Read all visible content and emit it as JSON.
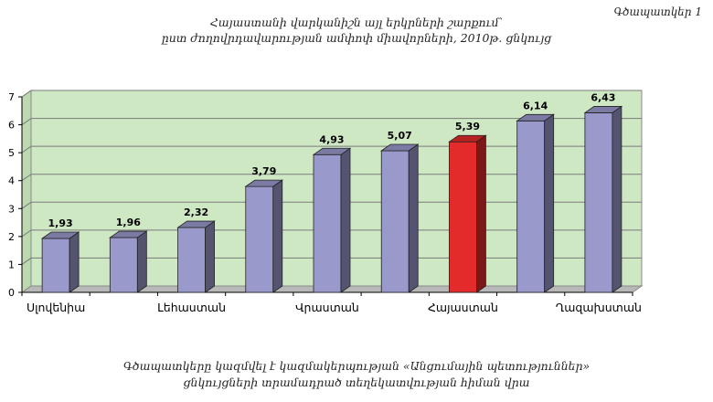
{
  "figure_label": "Գծապատկեր 1",
  "title_line1": "Հայաստանի վարկանիշն այլ երկրների շարքում՝",
  "title_line2": "ըստ ժողովրդավարության ամփոփ միավորների, 2010թ. ցնկույց",
  "caption_line1": "Գծապատկերը կազմվել է կազմակերպության «Անցումային պետություններ»",
  "caption_line2": "ցնկույցների տրամադրած տեղեկատվության հիման վրա",
  "colors": {
    "bar_default": "#9999cc",
    "bar_highlight": "#e32b2b",
    "plot_background": "#cfe8c4"
  },
  "chart_data": {
    "type": "bar",
    "title": "Հայաստանի վարկանիշն այլ երկրների շարքում՝ ըստ ժողովրդավարության ամփոփ միավորների, 2010թ. ցնկույց",
    "xlabel": "",
    "ylabel": "",
    "ylim": [
      0,
      7
    ],
    "yticks": [
      0,
      1,
      2,
      3,
      4,
      5,
      6,
      7
    ],
    "grid": true,
    "legend": "none",
    "style": "3d",
    "categories": [
      "Սլովենիա",
      "",
      "Լեհաստան",
      "",
      "Վրաստան",
      "",
      "Հայաստան",
      "",
      "Ղազախստան"
    ],
    "values": [
      1.93,
      1.96,
      2.32,
      3.79,
      4.93,
      5.07,
      5.39,
      6.14,
      6.43
    ],
    "value_labels": [
      "1,93",
      "1,96",
      "2,32",
      "3,79",
      "4,93",
      "5,07",
      "5,39",
      "6,14",
      "6,43"
    ],
    "highlight_index": 6
  }
}
